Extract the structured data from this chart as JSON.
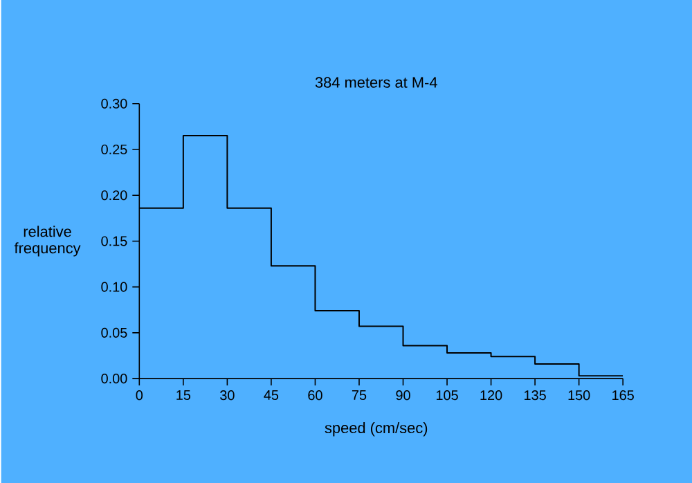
{
  "chart_data": {
    "type": "histogram",
    "title": "384 meters at M-4",
    "xlabel": "speed (cm/sec)",
    "ylabel": "relative frequency",
    "bins": [
      0,
      15,
      30,
      45,
      60,
      75,
      90,
      105,
      120,
      135,
      150,
      165
    ],
    "values": [
      0.186,
      0.265,
      0.186,
      0.123,
      0.074,
      0.057,
      0.036,
      0.028,
      0.024,
      0.016,
      0.003
    ],
    "color": "#000000",
    "xlim": [
      0,
      165
    ],
    "xticks": [
      0,
      15,
      30,
      45,
      60,
      75,
      90,
      105,
      120,
      135,
      150,
      165
    ],
    "ylim": [
      0,
      0.3
    ],
    "yticks": [
      {
        "value": 0,
        "label": "0.00"
      },
      {
        "value": 0.05,
        "label": "0.05"
      },
      {
        "value": 0.1,
        "label": "0.10"
      },
      {
        "value": 0.15,
        "label": "0.15"
      },
      {
        "value": 0.2,
        "label": "0.20"
      },
      {
        "value": 0.25,
        "label": "0.25"
      },
      {
        "value": 0.3,
        "label": "0.30"
      }
    ],
    "line_style": "solid"
  }
}
